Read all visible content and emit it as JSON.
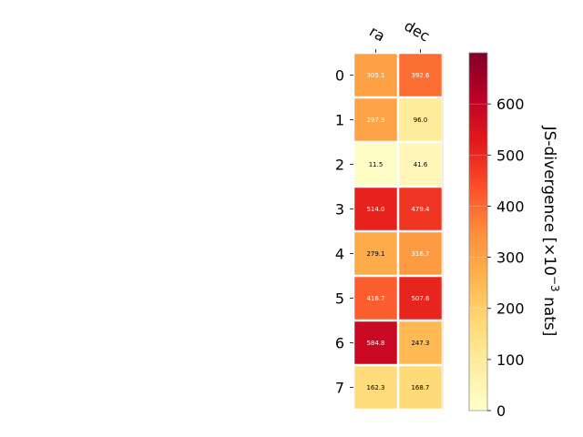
{
  "chart_data": {
    "type": "heatmap",
    "columns": [
      "ra",
      "dec"
    ],
    "rows": [
      "0",
      "1",
      "2",
      "3",
      "4",
      "5",
      "6",
      "7"
    ],
    "values": [
      [
        305.1,
        392.6
      ],
      [
        297.9,
        96.0
      ],
      [
        11.5,
        41.6
      ],
      [
        514.0,
        479.4
      ],
      [
        279.1,
        316.7
      ],
      [
        416.7,
        507.6
      ],
      [
        584.8,
        247.3
      ],
      [
        162.3,
        168.7
      ]
    ],
    "value_labels": [
      [
        "305.1",
        "392.6"
      ],
      [
        "297.9",
        "96.0"
      ],
      [
        "11.5",
        "41.6"
      ],
      [
        "514.0",
        "479.4"
      ],
      [
        "279.1",
        "316.7"
      ],
      [
        "416.7",
        "507.6"
      ],
      [
        "584.8",
        "247.3"
      ],
      [
        "162.3",
        "168.7"
      ]
    ],
    "colorbar": {
      "label_main": "JS-divergence [×10",
      "label_exp": "−3",
      "label_unit": " nats]",
      "range": [
        0,
        700
      ],
      "ticks": [
        "0",
        "100",
        "200",
        "300",
        "400",
        "500",
        "600"
      ],
      "tick_values": [
        0,
        100,
        200,
        300,
        400,
        500,
        600
      ],
      "colormap": "YlOrRd"
    },
    "grid": false
  }
}
